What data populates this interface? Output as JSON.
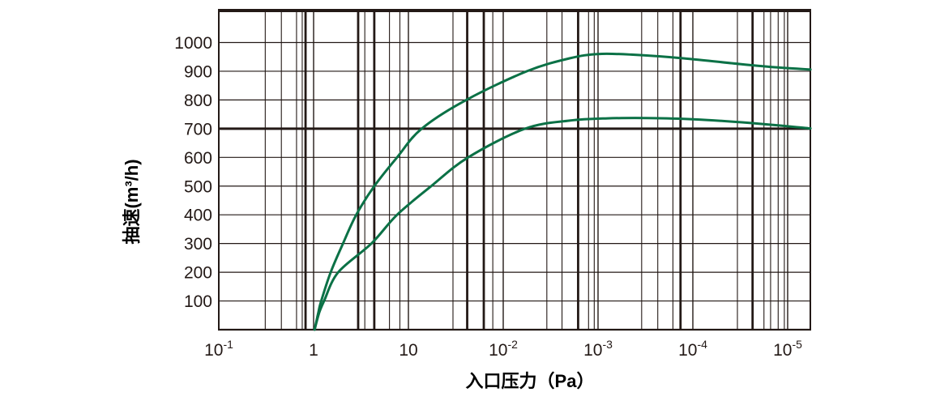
{
  "colors": {
    "ink": "#231916",
    "curve_green": "#0b7146",
    "background": "#ffffff"
  },
  "chart_data": {
    "type": "line",
    "title": "",
    "xlabel": "入口压力（Pa）",
    "ylabel": "抽速(m³/h)",
    "x_axis": {
      "scale": "log-decades",
      "tick_labels": [
        "10⁻¹",
        "1",
        "10",
        "10⁻²",
        "10⁻³",
        "10⁻⁴",
        "10⁻⁵"
      ],
      "tick_label_parts": [
        {
          "base": "10",
          "exp": "-1"
        },
        {
          "base": "1",
          "exp": ""
        },
        {
          "base": "10",
          "exp": ""
        },
        {
          "base": "10",
          "exp": "-2"
        },
        {
          "base": "10",
          "exp": "-3"
        },
        {
          "base": "10",
          "exp": "-4"
        },
        {
          "base": "10",
          "exp": "-5"
        }
      ],
      "note": "series x values are in decade units: 0 = first tick (10⁻¹), 1 = '1', 2 = '10', 3 = 10⁻², 4 = 10⁻³, 5 = 10⁻⁴, 6 = 10⁻⁵; axis extends ~0.24 decade past last tick"
    },
    "y_axis": {
      "min": 0,
      "max": 1110,
      "tick_step": 100,
      "tick_labels": [
        100,
        200,
        300,
        400,
        500,
        600,
        700,
        800,
        900,
        1000
      ],
      "emphasized_value": 700
    },
    "grid": "on",
    "legend": "none",
    "series": [
      {
        "name": "upper-speed-curve",
        "color": "#0b7146",
        "points": [
          [
            1.01,
            0
          ],
          [
            1.05,
            60
          ],
          [
            1.08,
            100
          ],
          [
            1.18,
            200
          ],
          [
            1.31,
            300
          ],
          [
            1.45,
            400
          ],
          [
            1.64,
            500
          ],
          [
            1.88,
            600
          ],
          [
            2.14,
            700
          ],
          [
            2.61,
            800
          ],
          [
            3.25,
            900
          ],
          [
            3.7,
            945
          ],
          [
            4.0,
            960
          ],
          [
            4.35,
            958
          ],
          [
            4.9,
            945
          ],
          [
            5.5,
            925
          ],
          [
            5.9,
            913
          ],
          [
            6.24,
            906
          ]
        ]
      },
      {
        "name": "lower-speed-curve",
        "color": "#0b7146",
        "points": [
          [
            1.01,
            0
          ],
          [
            1.06,
            60
          ],
          [
            1.11,
            100
          ],
          [
            1.26,
            200
          ],
          [
            1.61,
            300
          ],
          [
            1.88,
            400
          ],
          [
            2.24,
            500
          ],
          [
            2.63,
            600
          ],
          [
            3.23,
            700
          ],
          [
            3.7,
            728
          ],
          [
            4.1,
            736
          ],
          [
            4.5,
            737
          ],
          [
            5.0,
            733
          ],
          [
            5.6,
            720
          ],
          [
            6.24,
            701
          ]
        ]
      }
    ]
  }
}
